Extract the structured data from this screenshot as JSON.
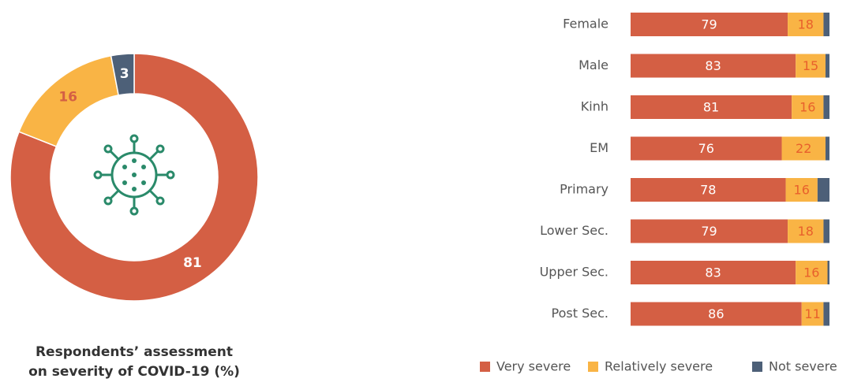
{
  "chart_data": [
    {
      "type": "donut",
      "title": [
        "Respondents’ assessment",
        "on severity of COVID-19 (%)"
      ],
      "values": [
        81,
        16,
        3
      ],
      "colors": [
        "#d45f44",
        "#f9b445",
        "#4d6078"
      ],
      "label_colors": [
        "#ffffff",
        "#d45f44",
        "#ffffff"
      ]
    },
    {
      "type": "stacked_barh",
      "categories": [
        "Female",
        "Male",
        "Kinh",
        "EM",
        "Primary",
        "Lower Sec.",
        "Upper Sec.",
        "Post Sec."
      ],
      "xlim": [
        0,
        100
      ],
      "legend": "bottom",
      "series": [
        {
          "name": "Very severe",
          "color": "#d45f44",
          "label_color": "#ffffff",
          "show_labels": true,
          "values": [
            79,
            83,
            81,
            76,
            78,
            79,
            83,
            86
          ]
        },
        {
          "name": "Relatively severe",
          "color": "#f9b445",
          "label_color": "#e8602c",
          "show_labels": true,
          "values": [
            18,
            15,
            16,
            22,
            16,
            18,
            16,
            11
          ]
        },
        {
          "name": "Not severe",
          "color": "#4d6078",
          "label_color": "#ffffff",
          "show_labels": false,
          "values": [
            3,
            2,
            3,
            2,
            6,
            3,
            1,
            3
          ]
        }
      ]
    }
  ]
}
